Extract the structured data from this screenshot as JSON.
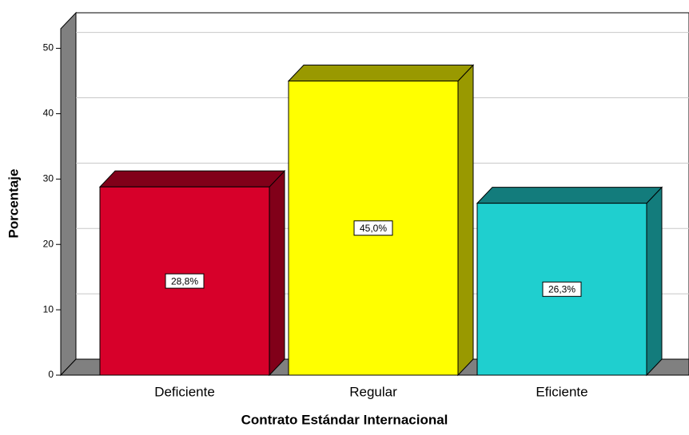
{
  "chart_data": {
    "type": "bar",
    "x_label": "Contrato Estándar Internacional",
    "y_label": "Porcentaje",
    "categories": [
      "Deficiente",
      "Regular",
      "Eficiente"
    ],
    "values": [
      28.8,
      45.0,
      26.3
    ],
    "value_labels": [
      "28,8%",
      "45,0%",
      "26,3%"
    ],
    "colors": [
      "#d7002a",
      "#ffff00",
      "#1fcfcf"
    ],
    "ylim": [
      0,
      53
    ],
    "yticks": [
      0,
      10,
      20,
      30,
      40,
      50
    ],
    "grid": true
  }
}
